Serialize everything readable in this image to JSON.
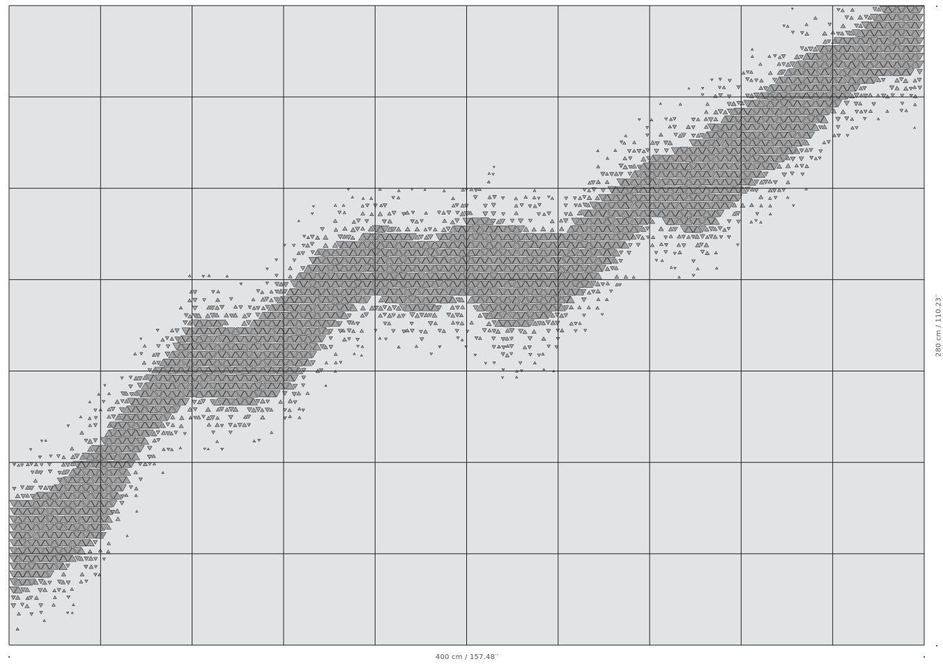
{
  "dimensions": {
    "width_label": "400 cm / 157.48′′",
    "height_label": "280 cm / 110.23′′"
  },
  "panels": {
    "columns": 10,
    "rows": 7
  },
  "colors": {
    "background": "#e2e3e5",
    "grid_line": "#222222",
    "triangle_fill": "#a3a3a3",
    "triangle_stroke": "#3a3a3a"
  },
  "pattern": {
    "description_icon": "triangle-mosaic-band"
  }
}
